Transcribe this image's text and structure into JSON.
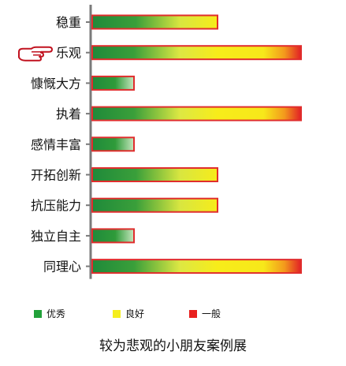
{
  "chart_data": {
    "type": "bar",
    "orientation": "horizontal",
    "categories": [
      "稳重",
      "乐观",
      "慷慨大方",
      "执着",
      "感情丰富",
      "开拓创新",
      "抗压能力",
      "独立自主",
      "同理心"
    ],
    "values": [
      3,
      5,
      1,
      5,
      1,
      3,
      3,
      1,
      5
    ],
    "xlim": [
      0,
      5
    ],
    "highlighted_category": "乐观",
    "legend": [
      {
        "label": "优秀",
        "color": "#22a13a"
      },
      {
        "label": "良好",
        "color": "#f5ee1e"
      },
      {
        "label": "一般",
        "color": "#e8201e"
      }
    ],
    "caption": "较为悲观的小朋友案例展"
  },
  "colors": {
    "green": "#1f8a3a",
    "yellow": "#f7ec1a",
    "red": "#e11f26",
    "bar_border": "#e02d2d",
    "axis": "#7a7a7a"
  },
  "icons": {
    "pointer": "pointing-hand-icon"
  }
}
